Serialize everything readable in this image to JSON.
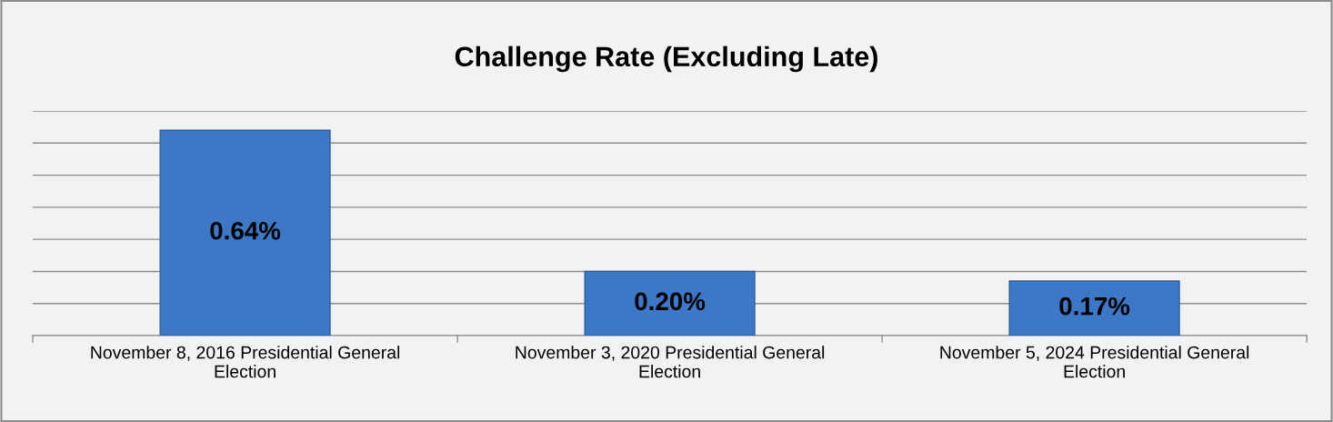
{
  "chart_data": {
    "type": "bar",
    "title": "Challenge Rate (Excluding Late)",
    "categories": [
      "November 8, 2016 Presidential General\nElection",
      "November 3, 2020 Presidential General\nElection",
      "November 5, 2024 Presidential General\nElection"
    ],
    "values": [
      0.64,
      0.2,
      0.17
    ],
    "color": "#3d78c6",
    "value_labels": [
      "0.64%",
      "0.20%",
      "0.17%"
    ],
    "ylim": [
      0,
      0.7
    ],
    "yticks": [
      {
        "value": 0,
        "label": null
      },
      {
        "value": 0.1,
        "label": null
      },
      {
        "value": 0.2,
        "label": null
      },
      {
        "value": 0.3,
        "label": null
      },
      {
        "value": 0.4,
        "label": null
      },
      {
        "value": 0.5,
        "label": null
      },
      {
        "value": 0.6,
        "label": null
      },
      {
        "value": 0.7,
        "label": null
      }
    ],
    "tick_labels": "x",
    "grid": "y",
    "legend": false
  }
}
